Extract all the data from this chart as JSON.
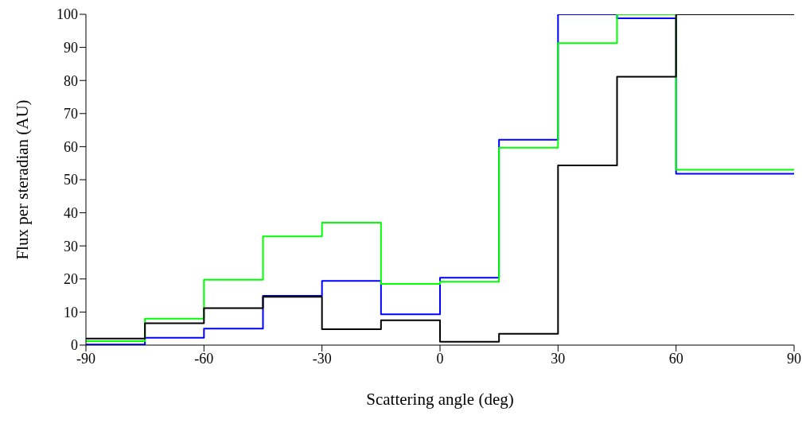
{
  "chart_data": {
    "type": "step",
    "xlabel": "Scattering angle (deg)",
    "ylabel": "Flux per steradian (AU)",
    "x": [
      -90,
      -75,
      -60,
      -45,
      -30,
      -15,
      0,
      15,
      30,
      45,
      60,
      75,
      90
    ],
    "series": [
      {
        "color": "#0000ff",
        "values": [
          0.2,
          2.2,
          5.0,
          14.9,
          19.4,
          9.3,
          20.4,
          62.1,
          100,
          98.8,
          51.8,
          51.8,
          51.8
        ]
      },
      {
        "color": "#00ff00",
        "values": [
          1.2,
          8.0,
          19.8,
          32.9,
          37.0,
          18.5,
          19.2,
          59.7,
          91.3,
          100,
          53.0,
          53.0,
          53.0
        ]
      },
      {
        "color": "#000000",
        "values": [
          2.0,
          6.6,
          11.2,
          14.6,
          4.8,
          7.5,
          1.0,
          3.4,
          54.3,
          81.1,
          100,
          100,
          100
        ]
      }
    ],
    "xlim": [
      -90,
      90
    ],
    "xticks": [
      -90,
      -60,
      -30,
      0,
      30,
      60,
      90
    ],
    "ylim": [
      0,
      100
    ],
    "yticks": [
      0,
      10,
      20,
      30,
      40,
      50,
      60,
      70,
      80,
      90,
      100
    ],
    "grid": false,
    "legend": false
  }
}
